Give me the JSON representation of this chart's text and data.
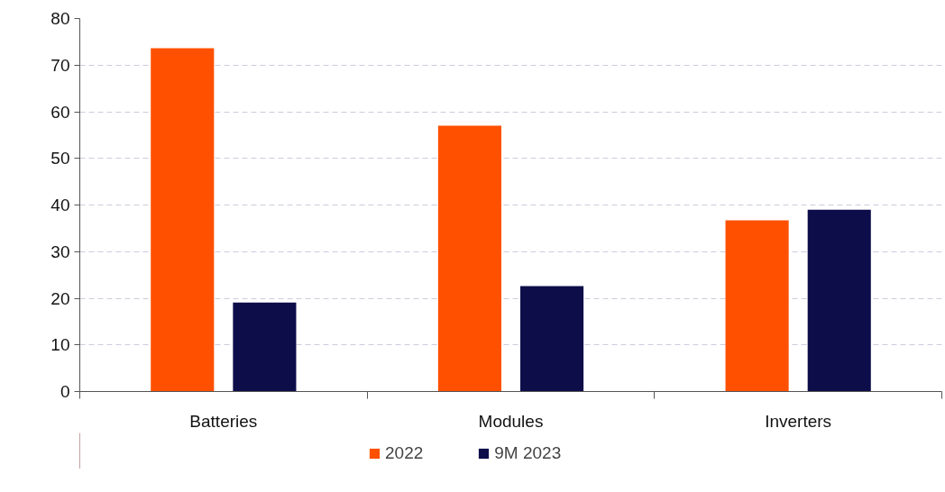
{
  "chart_data": {
    "type": "bar",
    "categories": [
      "Batteries",
      "Modules",
      "Inverters"
    ],
    "series": [
      {
        "name": "2022",
        "color": "#ff5000",
        "values": [
          73.6,
          57.0,
          36.7
        ]
      },
      {
        "name": "9M 2023",
        "color": "#0d0d4a",
        "values": [
          19.1,
          22.6,
          39.0
        ]
      }
    ],
    "ylim": [
      0,
      80
    ],
    "yticks": [
      0,
      10,
      20,
      30,
      40,
      50,
      60,
      70,
      80
    ],
    "grid": "y",
    "legend": "bottom"
  }
}
